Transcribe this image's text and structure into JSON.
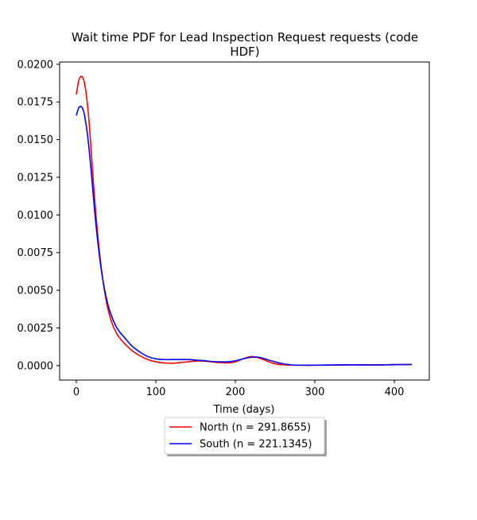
{
  "chart_data": {
    "type": "line",
    "title_lines": [
      "Wait time PDF for Lead Inspection Request  requests (code",
      "HDF)"
    ],
    "xlabel": "Time (days)",
    "ylabel": "",
    "xlim": [
      -21,
      444
    ],
    "ylim": [
      -0.00096,
      0.02015
    ],
    "xticks": [
      0,
      100,
      200,
      300,
      400
    ],
    "xtick_labels": [
      "0",
      "100",
      "200",
      "300",
      "400"
    ],
    "yticks": [
      0.0,
      0.0025,
      0.005,
      0.0075,
      0.01,
      0.0125,
      0.015,
      0.0175,
      0.02
    ],
    "ytick_labels": [
      "0.0000",
      "0.0025",
      "0.0050",
      "0.0075",
      "0.0100",
      "0.0125",
      "0.0150",
      "0.0175",
      "0.0200"
    ],
    "grid": false,
    "legend_placement": "below-center",
    "series": [
      {
        "name": "North (n = 291.8655)",
        "color": "#ff0000",
        "x": [
          0,
          3,
          6,
          9,
          12,
          15,
          18,
          21,
          25,
          30,
          35,
          40,
          45,
          50,
          55,
          60,
          70,
          80,
          90,
          100,
          110,
          120,
          130,
          140,
          150,
          160,
          170,
          180,
          190,
          200,
          210,
          220,
          230,
          240,
          250,
          260,
          270,
          280,
          300,
          320,
          340,
          360,
          380,
          400,
          422
        ],
        "y": [
          0.018,
          0.0189,
          0.0192,
          0.019,
          0.0182,
          0.0168,
          0.0148,
          0.0125,
          0.0098,
          0.0071,
          0.0051,
          0.0037,
          0.0028,
          0.0022,
          0.0018,
          0.0015,
          0.001,
          0.00065,
          0.0004,
          0.00025,
          0.00018,
          0.00016,
          0.0002,
          0.00025,
          0.0003,
          0.0003,
          0.00025,
          0.0002,
          0.00018,
          0.00025,
          0.00045,
          0.0006,
          0.0005,
          0.0003,
          0.00012,
          5e-05,
          3e-05,
          2e-05,
          2e-05,
          3e-05,
          4e-05,
          6e-05,
          5e-05,
          7e-05,
          7e-05
        ]
      },
      {
        "name": "South (n = 221.1345)",
        "color": "#0000ff",
        "x": [
          0,
          3,
          6,
          9,
          12,
          15,
          18,
          21,
          25,
          30,
          35,
          40,
          45,
          50,
          55,
          60,
          70,
          80,
          90,
          100,
          110,
          120,
          130,
          140,
          150,
          160,
          170,
          180,
          190,
          200,
          210,
          220,
          230,
          240,
          250,
          260,
          270,
          280,
          300,
          320,
          340,
          360,
          380,
          400,
          422
        ],
        "y": [
          0.0166,
          0.0171,
          0.0172,
          0.0169,
          0.0161,
          0.0149,
          0.0133,
          0.0115,
          0.0092,
          0.0069,
          0.0052,
          0.004,
          0.0032,
          0.0026,
          0.0022,
          0.0019,
          0.0013,
          0.0009,
          0.0006,
          0.00045,
          0.0004,
          0.0004,
          0.0004,
          0.0004,
          0.00037,
          0.00033,
          0.00028,
          0.00025,
          0.00025,
          0.00032,
          0.00045,
          0.00055,
          0.00055,
          0.0004,
          0.00025,
          0.00012,
          5e-05,
          3e-05,
          3e-05,
          4e-05,
          5e-05,
          4e-05,
          4e-05,
          6e-05,
          7e-05
        ]
      }
    ]
  }
}
